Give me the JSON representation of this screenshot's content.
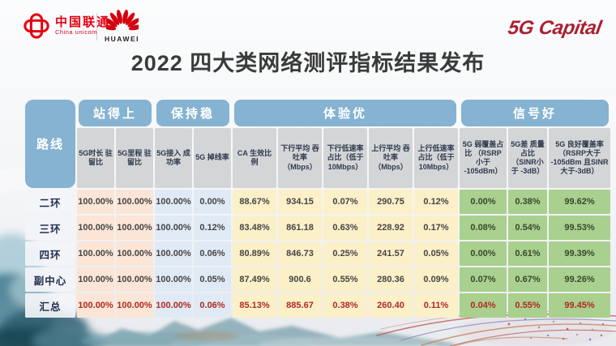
{
  "header": {
    "unicom": {
      "name_cn": "中国联通",
      "name_en": "China unicom"
    },
    "huawei": {
      "label": "HUAWEI"
    },
    "capital": {
      "label_5g": "5G",
      "label_capital": "Capital"
    },
    "title": "2022 四大类网络测评指标结果发布"
  },
  "table": {
    "route_header": "路线",
    "groups": [
      {
        "label": "站得上",
        "columns": 2
      },
      {
        "label": "保持稳",
        "columns": 2
      },
      {
        "label": "体验优",
        "columns": 5
      },
      {
        "label": "信号好",
        "columns": 3
      }
    ],
    "sub_headers": [
      "5G时长 驻留比",
      "5G里程 驻留比",
      "5G接入 成功率",
      "5G 掉线率",
      "CA 生效比例",
      "下行平均 吞吐率 （Mbps）",
      "下行低速率 占比（低于 10Mbps）",
      "上行平均 吞吐率 （Mbps）",
      "上行低速率 占比（低于 10Mbps）",
      "5G 弱覆盖占比 （RSRP小于 -105dBm）",
      "5G差 质量占比 （SINR小于 -3dB）",
      "5G 良好覆盖率 （RSRP大于 -105dBm 且SINR 大于-3dB）"
    ],
    "col_groups": [
      0,
      0,
      1,
      1,
      2,
      2,
      2,
      2,
      2,
      3,
      3,
      3
    ],
    "rows": [
      {
        "label": "二环",
        "highlight": false,
        "values": [
          "100.00%",
          "100.00%",
          "100.00%",
          "0.00%",
          "88.67%",
          "934.15",
          "0.07%",
          "290.75",
          "0.12%",
          "0.00%",
          "0.38%",
          "99.62%"
        ]
      },
      {
        "label": "三环",
        "highlight": false,
        "values": [
          "100.00%",
          "100.00%",
          "100.00%",
          "0.12%",
          "83.48%",
          "861.18",
          "0.63%",
          "228.92",
          "0.17%",
          "0.08%",
          "0.54%",
          "99.53%"
        ]
      },
      {
        "label": "四环",
        "highlight": false,
        "values": [
          "100.00%",
          "100.00%",
          "100.00%",
          "0.06%",
          "80.89%",
          "846.73",
          "0.25%",
          "241.57",
          "0.05%",
          "0.00%",
          "0.61%",
          "99.39%"
        ]
      },
      {
        "label": "副中心",
        "highlight": false,
        "values": [
          "100.00%",
          "100.00%",
          "100.00%",
          "0.05%",
          "87.49%",
          "900.6",
          "0.55%",
          "280.36",
          "0.09%",
          "0.07%",
          "0.67%",
          "99.26%"
        ]
      },
      {
        "label": "汇总",
        "highlight": true,
        "values": [
          "100.00%",
          "100.00%",
          "100.00%",
          "0.06%",
          "85.13%",
          "885.67",
          "0.38%",
          "260.40",
          "0.11%",
          "0.04%",
          "0.55%",
          "99.45%"
        ]
      }
    ]
  },
  "colors": {
    "group_header_bg": "#85b3d1",
    "subheader_bg": "#d4d5d7",
    "col_bg_standup": "#fbe5d6",
    "col_bg_stable": "#dfeaf5",
    "col_bg_experience": "#fcf0c9",
    "col_bg_signal": "#a9d08e",
    "summary_text": "#b02a20",
    "unicom_red": "#e60012",
    "huawei_red": "#d4000f",
    "capital_red": "#ab1f31",
    "title_text": "#3a3a3a"
  }
}
